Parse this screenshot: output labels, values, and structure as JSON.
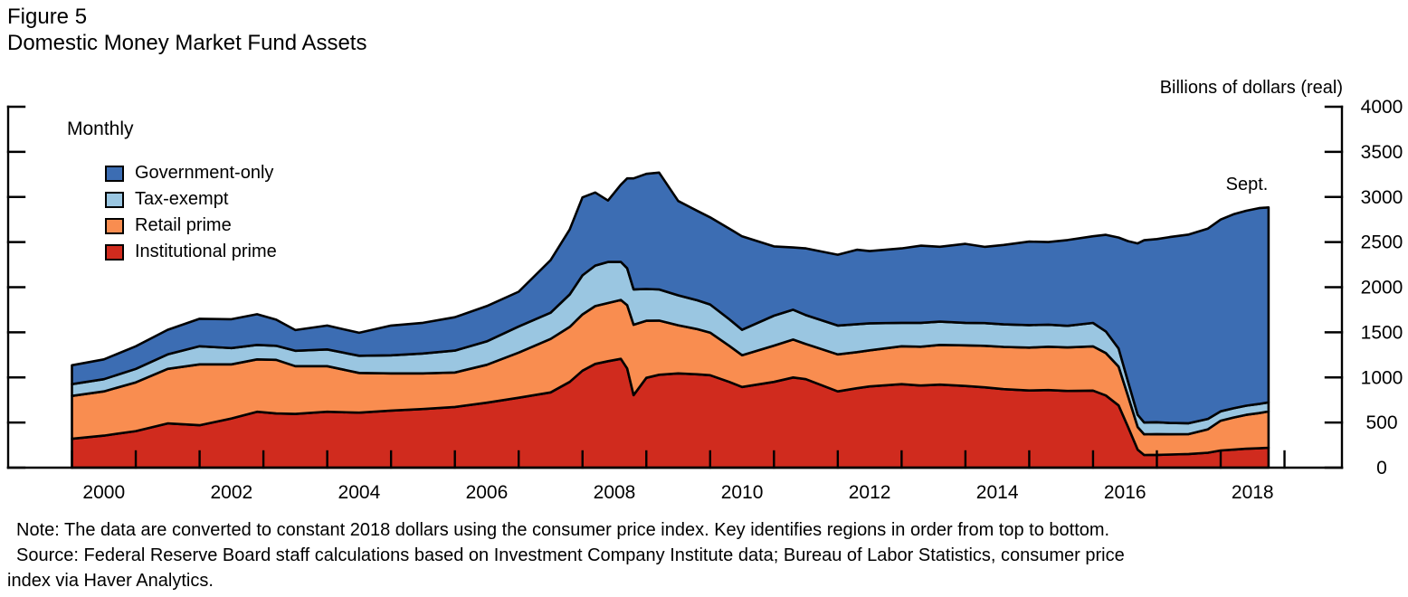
{
  "figure": {
    "label": "Figure 5",
    "title": "Domestic Money Market Fund Assets"
  },
  "axis": {
    "unit_label": "Billions of dollars (real)"
  },
  "annotations": {
    "frequency": "Monthly",
    "last_point": "Sept."
  },
  "notes": {
    "line1": "Note: The data are converted to constant 2018 dollars using the consumer price index. Key identifies regions in order from top to bottom.",
    "line2": "Source: Federal Reserve Board staff calculations based on Investment Company Institute data; Bureau of Labor Statistics, consumer price",
    "line3": "index via Haver Analytics."
  },
  "chart_data": {
    "type": "area",
    "stacked": true,
    "title": "Domestic Money Market Fund Assets",
    "xlabel": "",
    "ylabel": "Billions of dollars (real)",
    "ylim": [
      0,
      4000
    ],
    "yticks": [
      0,
      500,
      1000,
      1500,
      2000,
      2500,
      3000,
      3500,
      4000
    ],
    "xticks": [
      2000,
      2001,
      2002,
      2003,
      2004,
      2005,
      2006,
      2007,
      2008,
      2009,
      2010,
      2011,
      2012,
      2013,
      2014,
      2015,
      2016,
      2017,
      2018,
      2019
    ],
    "xtick_labels": [
      "2000",
      "2002",
      "2004",
      "2006",
      "2008",
      "2010",
      "2012",
      "2014",
      "2016",
      "2018"
    ],
    "grid": false,
    "legend_position": "upper-left",
    "outline_color": "#000000",
    "stack_note": "Series listed in key order, top region to bottom region",
    "x_years": [
      2000.0,
      2000.5,
      2001.0,
      2001.5,
      2002.0,
      2002.5,
      2002.9,
      2003.2,
      2003.5,
      2004.0,
      2004.5,
      2005.0,
      2005.5,
      2006.0,
      2006.5,
      2007.0,
      2007.5,
      2007.8,
      2008.0,
      2008.2,
      2008.4,
      2008.6,
      2008.7,
      2008.8,
      2009.0,
      2009.2,
      2009.5,
      2009.8,
      2010.0,
      2010.3,
      2010.5,
      2011.0,
      2011.3,
      2011.5,
      2012.0,
      2012.3,
      2012.5,
      2013.0,
      2013.3,
      2013.6,
      2014.0,
      2014.3,
      2014.6,
      2015.0,
      2015.3,
      2015.6,
      2016.0,
      2016.2,
      2016.4,
      2016.55,
      2016.7,
      2016.8,
      2017.0,
      2017.2,
      2017.5,
      2017.8,
      2018.0,
      2018.2,
      2018.4,
      2018.6,
      2018.75
    ],
    "series": [
      {
        "name": "Government-only",
        "color": "#3C6DB3",
        "values": [
          210,
          220,
          250,
          273,
          305,
          320,
          340,
          290,
          230,
          265,
          255,
          330,
          340,
          370,
          390,
          385,
          583,
          720,
          864,
          810,
          680,
          855,
          996,
          1230,
          1276,
          1295,
          1045,
          990,
          965,
          1005,
          1035,
          768,
          690,
          740,
          785,
          825,
          800,
          825,
          855,
          830,
          875,
          845,
          880,
          925,
          915,
          950,
          960,
          1070,
          1230,
          1560,
          1900,
          2020,
          2030,
          2060,
          2091,
          2110,
          2125,
          2150,
          2160,
          2170,
          2160
        ]
      },
      {
        "name": "Tax-exempt",
        "color": "#9AC6E1",
        "values": [
          130,
          135,
          150,
          160,
          200,
          180,
          160,
          155,
          170,
          185,
          190,
          200,
          220,
          242,
          260,
          290,
          290,
          360,
          433,
          450,
          455,
          422,
          410,
          392,
          352,
          345,
          332,
          320,
          312,
          295,
          282,
          332,
          330,
          320,
          320,
          310,
          300,
          260,
          265,
          258,
          250,
          252,
          250,
          250,
          245,
          240,
          260,
          240,
          200,
          160,
          135,
          130,
          131,
          125,
          120,
          115,
          105,
          103,
          102,
          101,
          101
        ]
      },
      {
        "name": "Retail prime",
        "color": "#F98D50",
        "values": [
          475,
          490,
          540,
          605,
          675,
          600,
          580,
          595,
          530,
          505,
          440,
          412,
          395,
          382,
          420,
          500,
          593,
          610,
          623,
          640,
          645,
          653,
          700,
          780,
          633,
          600,
          533,
          500,
          472,
          400,
          352,
          402,
          420,
          390,
          410,
          400,
          400,
          420,
          430,
          440,
          450,
          460,
          468,
          475,
          480,
          482,
          490,
          470,
          430,
          340,
          250,
          230,
          231,
          225,
          221,
          260,
          330,
          355,
          375,
          390,
          402
        ]
      },
      {
        "name": "Institutional prime",
        "color": "#D02B1E",
        "values": [
          320,
          355,
          405,
          490,
          470,
          545,
          620,
          600,
          595,
          620,
          610,
          633,
          650,
          673,
          720,
          775,
          834,
          950,
          1075,
          1150,
          1180,
          1206,
          1100,
          804,
          995,
          1030,
          1045,
          1035,
          1025,
          950,
          894,
          950,
          1000,
          980,
          845,
          880,
          900,
          925,
          910,
          920,
          905,
          890,
          870,
          855,
          860,
          850,
          854,
          800,
          690,
          450,
          200,
          140,
          141,
          145,
          151,
          165,
          190,
          200,
          210,
          215,
          221
        ]
      }
    ]
  }
}
